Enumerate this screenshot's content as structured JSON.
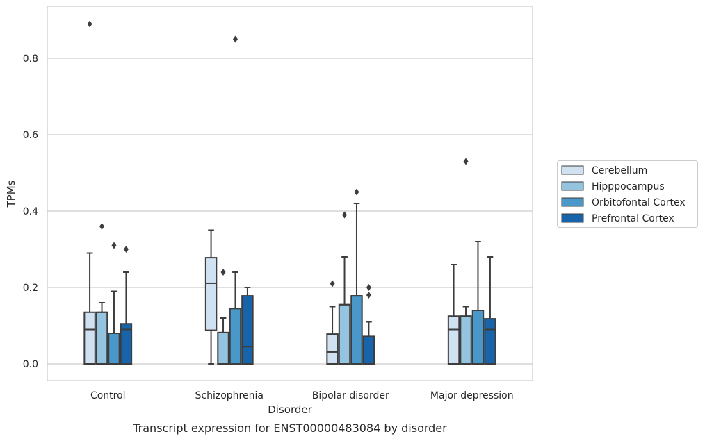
{
  "chart_data": {
    "type": "box",
    "caption": "Transcript expression for ENST00000483084 by disorder",
    "xlabel": "Disorder",
    "ylabel": "TPMs",
    "ylim": [
      -0.043,
      0.93
    ],
    "yticks": [
      0.0,
      0.2,
      0.4,
      0.6,
      0.8
    ],
    "ytick_labels": [
      "0.0",
      "0.2",
      "0.4",
      "0.6",
      "0.8"
    ],
    "grid": "horizontal",
    "legend_position": "right",
    "categories": [
      "Control",
      "Schizophrenia",
      "Bipolar disorder",
      "Major depression"
    ],
    "series": [
      {
        "name": "Cerebellum",
        "color": "#d0e1f2",
        "boxes": [
          {
            "whislo": 0.0,
            "q1": 0.0,
            "med": 0.09,
            "q3": 0.135,
            "whishi": 0.29,
            "fliers": [
              0.89
            ]
          },
          {
            "whislo": 0.0,
            "q1": 0.088,
            "med": 0.211,
            "q3": 0.278,
            "whishi": 0.35,
            "fliers": []
          },
          {
            "whislo": 0.0,
            "q1": 0.0,
            "med": 0.031,
            "q3": 0.078,
            "whishi": 0.15,
            "fliers": [
              0.21
            ]
          },
          {
            "whislo": 0.0,
            "q1": 0.0,
            "med": 0.09,
            "q3": 0.125,
            "whishi": 0.26,
            "fliers": []
          }
        ]
      },
      {
        "name": "Hipppocampus",
        "color": "#94c4df",
        "boxes": [
          {
            "whislo": 0.0,
            "q1": 0.0,
            "med": 0.135,
            "q3": 0.135,
            "whishi": 0.16,
            "fliers": [
              0.36
            ]
          },
          {
            "whislo": 0.0,
            "q1": 0.0,
            "med": 0.082,
            "q3": 0.082,
            "whishi": 0.12,
            "fliers": [
              0.24
            ]
          },
          {
            "whislo": 0.0,
            "q1": 0.0,
            "med": 0.155,
            "q3": 0.155,
            "whishi": 0.28,
            "fliers": [
              0.39
            ]
          },
          {
            "whislo": 0.0,
            "q1": 0.0,
            "med": 0.125,
            "q3": 0.125,
            "whishi": 0.15,
            "fliers": [
              0.53
            ]
          }
        ]
      },
      {
        "name": "Orbitofontal Cortex",
        "color": "#4a98c9",
        "boxes": [
          {
            "whislo": 0.0,
            "q1": 0.0,
            "med": 0.08,
            "q3": 0.08,
            "whishi": 0.19,
            "fliers": [
              0.31
            ]
          },
          {
            "whislo": 0.0,
            "q1": 0.0,
            "med": 0.145,
            "q3": 0.145,
            "whishi": 0.24,
            "fliers": [
              0.85
            ]
          },
          {
            "whislo": 0.0,
            "q1": 0.0,
            "med": 0.178,
            "q3": 0.178,
            "whishi": 0.42,
            "fliers": [
              0.45
            ]
          },
          {
            "whislo": 0.0,
            "q1": 0.0,
            "med": 0.14,
            "q3": 0.14,
            "whishi": 0.32,
            "fliers": []
          }
        ]
      },
      {
        "name": "Prefrontal Cortex",
        "color": "#1764ab",
        "boxes": [
          {
            "whislo": 0.0,
            "q1": 0.0,
            "med": 0.09,
            "q3": 0.105,
            "whishi": 0.24,
            "fliers": [
              0.3
            ]
          },
          {
            "whislo": 0.0,
            "q1": 0.0,
            "med": 0.045,
            "q3": 0.178,
            "whishi": 0.2,
            "fliers": []
          },
          {
            "whislo": 0.0,
            "q1": 0.0,
            "med": 0.0,
            "q3": 0.072,
            "whishi": 0.11,
            "fliers": [
              0.18,
              0.2
            ]
          },
          {
            "whislo": 0.0,
            "q1": 0.0,
            "med": 0.09,
            "q3": 0.118,
            "whishi": 0.28,
            "fliers": []
          }
        ]
      }
    ]
  }
}
